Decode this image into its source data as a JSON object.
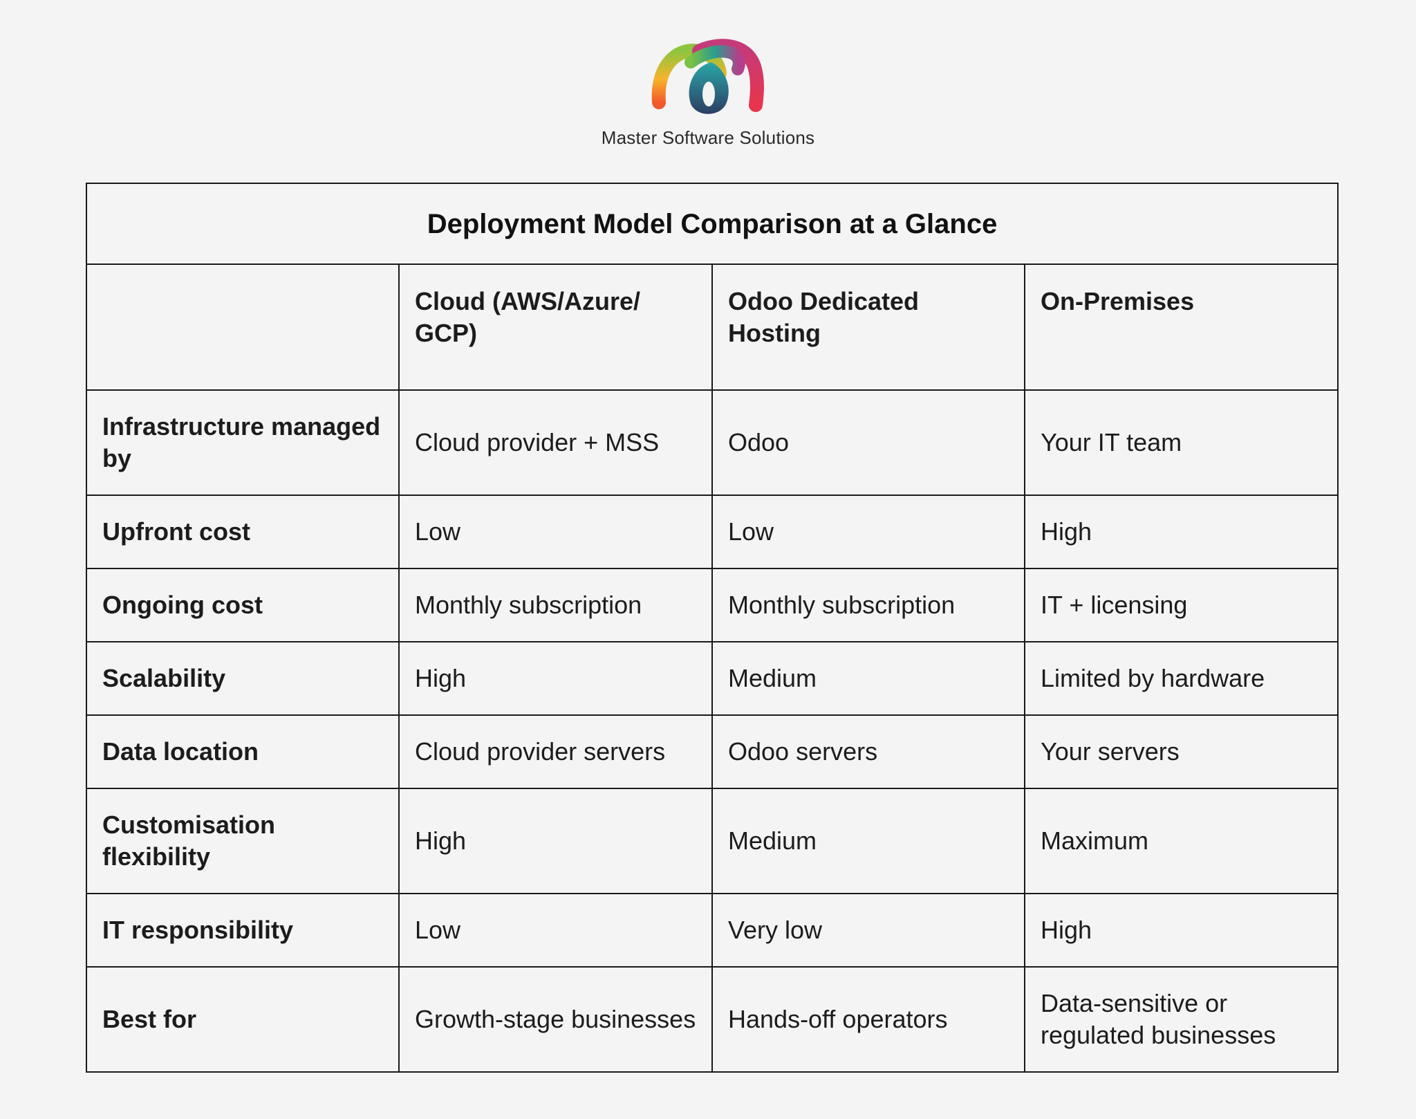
{
  "brand": {
    "name": "Master Software Solutions",
    "logo": "mss-loop-logo"
  },
  "table": {
    "title": "Deployment Model Comparison at a Glance",
    "corner": "",
    "columns": [
      "Cloud (AWS/Azure/ GCP)",
      "Odoo Dedicated Hosting",
      "On-Premises"
    ],
    "rows": [
      {
        "label": "Infrastructure managed by",
        "values": [
          "Cloud provider + MSS",
          "Odoo",
          "Your IT team"
        ]
      },
      {
        "label": "Upfront cost",
        "values": [
          "Low",
          "Low",
          "High"
        ]
      },
      {
        "label": "Ongoing cost",
        "values": [
          "Monthly subscription",
          "Monthly subscription",
          "IT + licensing"
        ]
      },
      {
        "label": "Scalability",
        "values": [
          "High",
          "Medium",
          "Limited by hardware"
        ]
      },
      {
        "label": "Data location",
        "values": [
          "Cloud provider servers",
          "Odoo servers",
          "Your servers"
        ]
      },
      {
        "label": "Customisation flexibility",
        "values": [
          "High",
          "Medium",
          "Maximum"
        ]
      },
      {
        "label": "IT responsibility",
        "values": [
          "Low",
          "Very low",
          "High"
        ]
      },
      {
        "label": "Best for",
        "values": [
          "Growth-stage businesses",
          "Hands-off operators",
          "Data-sensitive or regulated businesses"
        ]
      }
    ]
  }
}
